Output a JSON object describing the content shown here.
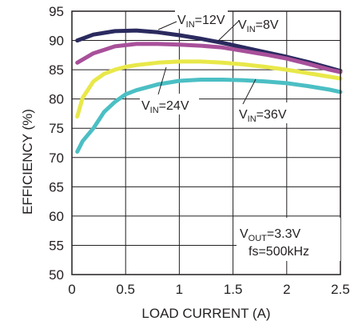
{
  "chart_data": {
    "type": "line",
    "title": "",
    "xlabel": "LOAD CURRENT (A)",
    "ylabel": "EFFICIENCY (%)",
    "xlim": [
      0,
      2.5
    ],
    "ylim": [
      50,
      95
    ],
    "x_ticks": [
      "0",
      "0.5",
      "1",
      "1.5",
      "2",
      "2.5"
    ],
    "y_ticks": [
      "50",
      "55",
      "60",
      "65",
      "70",
      "75",
      "80",
      "85",
      "90",
      "95"
    ],
    "grid": true,
    "series": [
      {
        "name": "VIN=12V",
        "label_main": "V",
        "label_sub": "IN",
        "label_rest": "=12V",
        "color": "#2b2a5f",
        "x": [
          0.05,
          0.2,
          0.4,
          0.6,
          0.8,
          1.0,
          1.2,
          1.4,
          1.6,
          1.8,
          2.0,
          2.2,
          2.4,
          2.5
        ],
        "y": [
          90.0,
          91.0,
          91.6,
          91.7,
          91.4,
          90.9,
          90.3,
          89.6,
          88.8,
          88.0,
          87.2,
          86.3,
          85.3,
          84.8
        ]
      },
      {
        "name": "VIN=8V",
        "label_main": "V",
        "label_sub": "IN",
        "label_rest": "=8V",
        "color": "#a8509a",
        "x": [
          0.05,
          0.2,
          0.4,
          0.6,
          0.8,
          1.0,
          1.2,
          1.4,
          1.6,
          1.8,
          2.0,
          2.2,
          2.4,
          2.5
        ],
        "y": [
          86.2,
          87.8,
          89.0,
          89.4,
          89.4,
          89.3,
          89.1,
          88.8,
          88.2,
          87.6,
          86.9,
          86.0,
          85.0,
          84.6
        ]
      },
      {
        "name": "VIN=24V",
        "label_main": "V",
        "label_sub": "IN",
        "label_rest": "=24V",
        "color": "#e8e84a",
        "x": [
          0.05,
          0.1,
          0.2,
          0.3,
          0.4,
          0.5,
          0.6,
          0.8,
          1.0,
          1.2,
          1.4,
          1.6,
          1.8,
          2.0,
          2.2,
          2.4,
          2.5
        ],
        "y": [
          77.0,
          80.2,
          83.0,
          84.3,
          85.0,
          85.5,
          85.8,
          86.2,
          86.4,
          86.4,
          86.2,
          85.9,
          85.5,
          85.0,
          84.4,
          83.8,
          83.5
        ]
      },
      {
        "name": "VIN=36V",
        "label_main": "V",
        "label_sub": "IN",
        "label_rest": "=36V",
        "color": "#4bbfc4",
        "x": [
          0.05,
          0.1,
          0.2,
          0.3,
          0.4,
          0.5,
          0.6,
          0.8,
          1.0,
          1.2,
          1.4,
          1.6,
          1.8,
          2.0,
          2.2,
          2.4,
          2.5
        ],
        "y": [
          71.0,
          72.8,
          75.0,
          77.8,
          79.5,
          80.8,
          81.5,
          82.5,
          83.1,
          83.3,
          83.3,
          83.2,
          83.0,
          82.7,
          82.2,
          81.6,
          81.2
        ]
      }
    ],
    "annotation": {
      "line1_main": "V",
      "line1_sub": "OUT",
      "line1_rest": "=3.3V",
      "line2": "fs=500kHz"
    }
  }
}
